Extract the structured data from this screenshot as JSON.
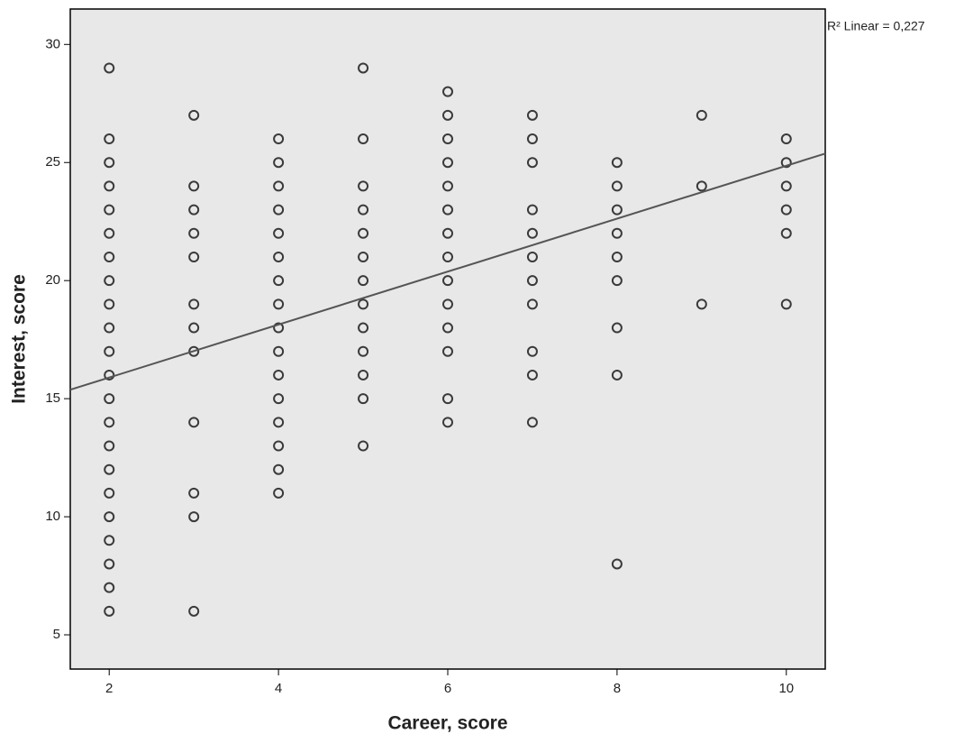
{
  "chart_data": {
    "type": "scatter",
    "x_label": "Career, score",
    "y_label": "Interest, score",
    "annotation": "R² Linear = 0,227",
    "xlim": [
      1.54,
      10.46
    ],
    "ylim": [
      3.55,
      31.5
    ],
    "xticks": [
      2,
      4,
      6,
      8,
      10
    ],
    "yticks": [
      5,
      10,
      15,
      20,
      25,
      30
    ],
    "grid": false,
    "background": "#e8e8e8",
    "marker_color": "#3a3a3a",
    "line_color": "#555555",
    "x": [
      2,
      2,
      2,
      2,
      2,
      2,
      2,
      2,
      2,
      2,
      2,
      2,
      2,
      2,
      2,
      2,
      2,
      2,
      2,
      2,
      2,
      2,
      3,
      3,
      3,
      3,
      3,
      3,
      3,
      3,
      3,
      3,
      3,
      3,
      4,
      4,
      4,
      4,
      4,
      4,
      4,
      4,
      4,
      4,
      4,
      4,
      4,
      4,
      4,
      4,
      5,
      5,
      5,
      5,
      5,
      5,
      5,
      5,
      5,
      5,
      5,
      5,
      5,
      6,
      6,
      6,
      6,
      6,
      6,
      6,
      6,
      6,
      6,
      6,
      6,
      6,
      6,
      7,
      7,
      7,
      7,
      7,
      7,
      7,
      7,
      7,
      7,
      7,
      8,
      8,
      8,
      8,
      8,
      8,
      8,
      8,
      8,
      9,
      9,
      9,
      10,
      10,
      10,
      10,
      10,
      10
    ],
    "y": [
      29,
      26,
      25,
      24,
      23,
      22,
      21,
      20,
      19,
      18,
      17,
      16,
      15,
      14,
      13,
      12,
      11,
      10,
      9,
      8,
      7,
      6,
      27,
      24,
      23,
      22,
      21,
      19,
      18,
      17,
      14,
      11,
      10,
      6,
      26,
      25,
      24,
      23,
      22,
      21,
      20,
      19,
      18,
      17,
      16,
      15,
      14,
      13,
      12,
      11,
      29,
      26,
      24,
      23,
      22,
      21,
      20,
      19,
      18,
      17,
      16,
      15,
      13,
      28,
      27,
      26,
      25,
      24,
      23,
      22,
      21,
      20,
      19,
      18,
      17,
      15,
      14,
      27,
      26,
      25,
      23,
      22,
      21,
      20,
      19,
      17,
      16,
      14,
      25,
      24,
      23,
      22,
      21,
      20,
      18,
      16,
      8,
      27,
      24,
      19,
      26,
      25,
      24,
      23,
      22,
      19
    ],
    "fit_line": {
      "x": [
        1.54,
        10.46
      ],
      "y": [
        15.38,
        25.38
      ]
    }
  }
}
